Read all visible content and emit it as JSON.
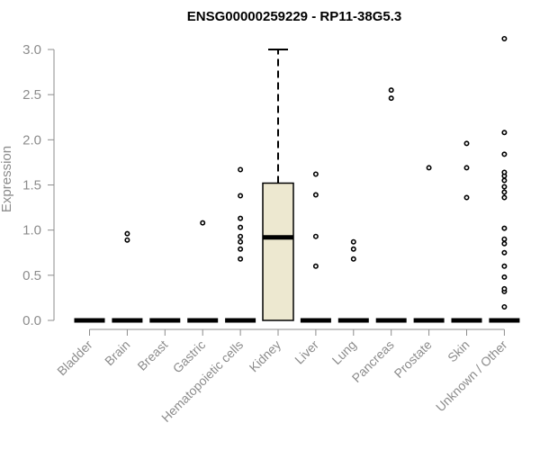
{
  "chart_data": {
    "type": "box",
    "title": "ENSG00000259229 - RP11-38G5.3",
    "xlabel": "",
    "ylabel": "Expression",
    "ylim": [
      0,
      3.0
    ],
    "yticks": [
      "0.0",
      "0.5",
      "1.0",
      "1.5",
      "2.0",
      "2.5",
      "3.0"
    ],
    "categories": [
      "Bladder",
      "Brain",
      "Breast",
      "Gastric",
      "Hematopoietic cells",
      "Kidney",
      "Liver",
      "Lung",
      "Pancreas",
      "Prostate",
      "Skin",
      "Unknown / Other"
    ],
    "boxes": [
      {
        "category": "Bladder",
        "q1": 0,
        "median": 0,
        "q3": 0,
        "whisker_low": 0,
        "whisker_high": 0,
        "outliers": []
      },
      {
        "category": "Brain",
        "q1": 0,
        "median": 0,
        "q3": 0,
        "whisker_low": 0,
        "whisker_high": 0,
        "outliers": [
          0.89,
          0.96
        ]
      },
      {
        "category": "Breast",
        "q1": 0,
        "median": 0,
        "q3": 0,
        "whisker_low": 0,
        "whisker_high": 0,
        "outliers": []
      },
      {
        "category": "Gastric",
        "q1": 0,
        "median": 0,
        "q3": 0,
        "whisker_low": 0,
        "whisker_high": 0,
        "outliers": [
          1.08
        ]
      },
      {
        "category": "Hematopoietic cells",
        "q1": 0,
        "median": 0,
        "q3": 0,
        "whisker_low": 0,
        "whisker_high": 0,
        "outliers": [
          0.68,
          0.79,
          0.87,
          0.93,
          1.03,
          1.13,
          1.38,
          1.67
        ]
      },
      {
        "category": "Kidney",
        "q1": 0,
        "median": 0.92,
        "q3": 1.52,
        "whisker_low": 0,
        "whisker_high": 3.0,
        "outliers": []
      },
      {
        "category": "Liver",
        "q1": 0,
        "median": 0,
        "q3": 0,
        "whisker_low": 0,
        "whisker_high": 0,
        "outliers": [
          0.6,
          0.93,
          1.39,
          1.62
        ]
      },
      {
        "category": "Lung",
        "q1": 0,
        "median": 0,
        "q3": 0,
        "whisker_low": 0,
        "whisker_high": 0,
        "outliers": [
          0.68,
          0.79,
          0.87
        ]
      },
      {
        "category": "Pancreas",
        "q1": 0,
        "median": 0,
        "q3": 0,
        "whisker_low": 0,
        "whisker_high": 0,
        "outliers": [
          2.46,
          2.55
        ]
      },
      {
        "category": "Prostate",
        "q1": 0,
        "median": 0,
        "q3": 0,
        "whisker_low": 0,
        "whisker_high": 0,
        "outliers": [
          1.69
        ]
      },
      {
        "category": "Skin",
        "q1": 0,
        "median": 0,
        "q3": 0,
        "whisker_low": 0,
        "whisker_high": 0,
        "outliers": [
          1.36,
          1.69,
          1.96
        ]
      },
      {
        "category": "Unknown / Other",
        "q1": 0,
        "median": 0,
        "q3": 0,
        "whisker_low": 0,
        "whisker_high": 0,
        "outliers": [
          0.15,
          0.32,
          0.35,
          0.48,
          0.6,
          0.75,
          0.85,
          0.9,
          1.02,
          1.36,
          1.42,
          1.48,
          1.55,
          1.6,
          1.64,
          1.84,
          2.08,
          3.12
        ]
      }
    ],
    "box_color": "#ede8d0",
    "grid": false,
    "legend": "none"
  }
}
